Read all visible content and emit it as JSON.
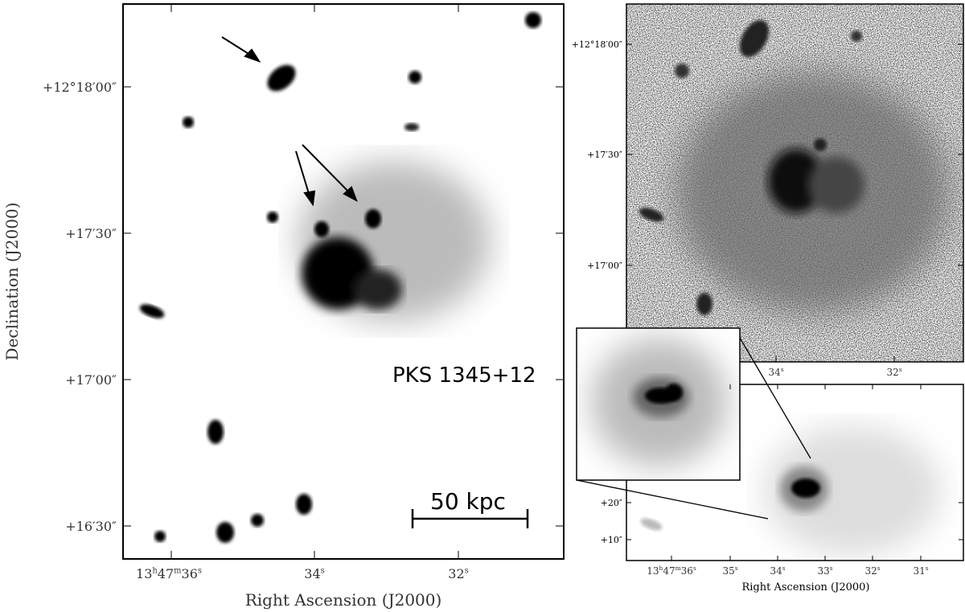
{
  "left_panel": {
    "label": "PKS 1345+12",
    "scale_bar": "50 kpc",
    "x_axis_label": "Right Ascension (J2000)",
    "y_axis_label": "Declination (J2000)",
    "x_ticks": [
      [
        "13",
        "h",
        "47",
        "m",
        "36",
        "s"
      ],
      [
        "34",
        "s"
      ],
      [
        "32",
        "s"
      ]
    ],
    "y_ticks": [
      "+12°18′00″",
      "+17′30″",
      "+17′00″",
      "+16′30″"
    ]
  },
  "top_right_panel": {
    "x_ticks": [
      [
        "34",
        "s"
      ],
      [
        "32",
        "s"
      ]
    ],
    "y_ticks": [
      "+12°18′00″",
      "+17′30″",
      "+17′00″"
    ]
  },
  "bottom_right_panel": {
    "x_axis_label": "Right Ascension (J2000)",
    "x_ticks": [
      [
        "13",
        "h",
        "47",
        "m",
        "36",
        "s"
      ],
      [
        "35",
        "s"
      ],
      [
        "34",
        "s"
      ],
      [
        "33",
        "s"
      ],
      [
        "32",
        "s"
      ],
      [
        "31",
        "s"
      ]
    ],
    "y_ticks": [
      "+20″",
      "+10″"
    ]
  }
}
